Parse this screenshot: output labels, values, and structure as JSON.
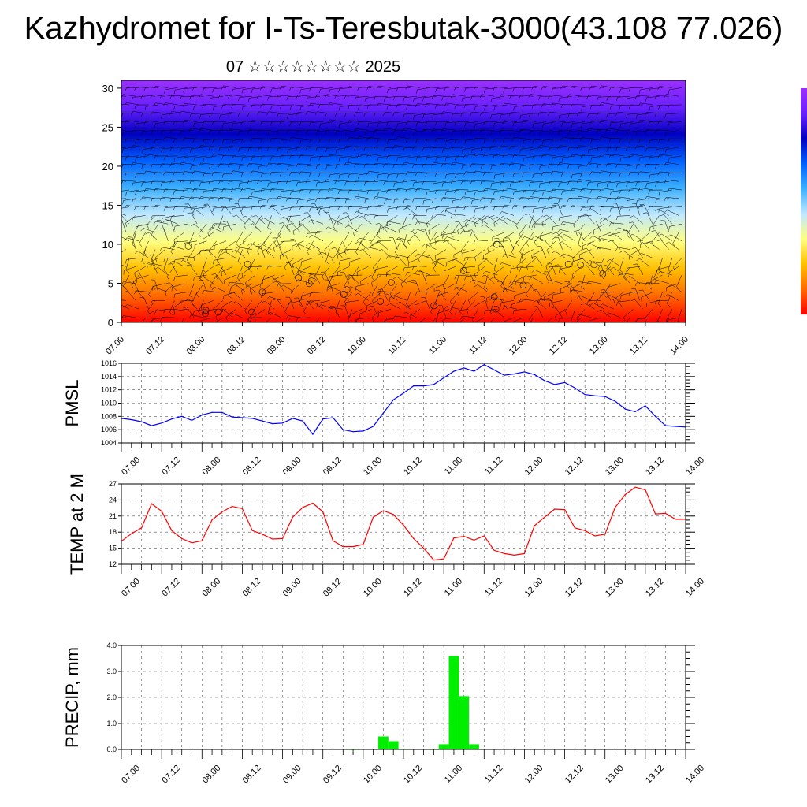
{
  "header": {
    "title": "Kazhydromet for I-Ts-Teresbutak-3000(43.108 77.026)",
    "subtitle": "07 ☆☆☆☆☆☆☆☆ 2025"
  },
  "chart_data": [
    {
      "type": "heatmap",
      "name": "vertical-section",
      "x_ticks": [
        "07.00",
        "07.12",
        "08.00",
        "08.12",
        "09.00",
        "09.12",
        "10.00",
        "10.12",
        "11.00",
        "11.12",
        "12.00",
        "12.12",
        "13.00",
        "13.12",
        "14.00"
      ],
      "y_ticks": [
        0,
        5,
        10,
        15,
        20,
        25,
        30
      ],
      "ylim": [
        0,
        31
      ],
      "colormap": [
        "#ff0000",
        "#ff6a00",
        "#ffc000",
        "#ffff80",
        "#c0e8ff",
        "#3cb0ff",
        "#0060ff",
        "#0000c0",
        "#6a20ff",
        "#9a30ff"
      ],
      "overlay": "wind barbs"
    },
    {
      "type": "line",
      "name": "pmsl",
      "ylabel": "PMSL",
      "ylim": [
        1004,
        1016
      ],
      "y_ticks": [
        1004,
        1006,
        1008,
        1010,
        1012,
        1014,
        1016
      ],
      "x_ticks": [
        "07.00",
        "07.12",
        "08.00",
        "08.12",
        "09.00",
        "09.12",
        "10.00",
        "10.12",
        "11.00",
        "11.12",
        "12.00",
        "12.12",
        "13.00",
        "13.12",
        "14.00"
      ],
      "color": "#0000ff",
      "x": [
        0,
        3,
        6,
        9,
        12,
        15,
        18,
        21,
        24,
        27,
        30,
        33,
        36,
        39,
        42,
        45,
        48,
        51,
        54,
        57,
        60,
        63,
        66,
        69,
        72,
        75,
        78,
        81,
        84,
        87,
        90,
        93,
        96,
        99,
        102,
        105,
        108,
        111,
        114,
        117,
        120,
        123,
        126,
        129,
        132,
        135,
        138,
        141,
        144,
        147,
        150,
        153,
        156,
        159,
        162,
        165,
        168
      ],
      "values": [
        1007.7,
        1007.5,
        1007.2,
        1006.6,
        1007.0,
        1007.6,
        1008.0,
        1007.4,
        1008.2,
        1008.6,
        1008.6,
        1007.9,
        1007.8,
        1007.7,
        1007.3,
        1006.9,
        1007.0,
        1007.7,
        1007.3,
        1005.3,
        1007.6,
        1007.8,
        1006.0,
        1005.7,
        1005.8,
        1006.5,
        1008.5,
        1010.5,
        1011.5,
        1012.6,
        1012.6,
        1012.8,
        1013.8,
        1014.8,
        1015.3,
        1014.8,
        1015.8,
        1015.0,
        1014.2,
        1014.4,
        1014.7,
        1014.3,
        1013.4,
        1012.8,
        1013.1,
        1012.3,
        1011.3,
        1011.1,
        1011.0,
        1010.3,
        1009.1,
        1008.7,
        1009.6,
        1008.0,
        1006.6,
        1006.5,
        1006.4
      ]
    },
    {
      "type": "line",
      "name": "temp-2m",
      "ylabel": "TEMP at 2 M",
      "ylim": [
        12,
        27
      ],
      "y_ticks": [
        12,
        15,
        18,
        21,
        24,
        27
      ],
      "x_ticks": [
        "07.00",
        "07.12",
        "08.00",
        "08.12",
        "09.00",
        "09.12",
        "10.00",
        "10.12",
        "11.00",
        "11.12",
        "12.00",
        "12.12",
        "13.00",
        "13.12",
        "14.00"
      ],
      "color": "#ff0000",
      "x": [
        0,
        3,
        6,
        9,
        12,
        15,
        18,
        21,
        24,
        27,
        30,
        33,
        36,
        39,
        42,
        45,
        48,
        51,
        54,
        57,
        60,
        63,
        66,
        69,
        72,
        75,
        78,
        81,
        84,
        87,
        90,
        93,
        96,
        99,
        102,
        105,
        108,
        111,
        114,
        117,
        120,
        123,
        126,
        129,
        132,
        135,
        138,
        141,
        144,
        147,
        150,
        153,
        156,
        159,
        162,
        165,
        168
      ],
      "values": [
        16.3,
        17.7,
        18.8,
        23.3,
        21.9,
        18.3,
        16.8,
        16.0,
        16.4,
        20.3,
        21.8,
        22.8,
        22.4,
        18.3,
        17.6,
        16.7,
        16.8,
        20.8,
        22.6,
        23.4,
        21.8,
        16.4,
        15.3,
        15.3,
        15.7,
        20.8,
        22.0,
        21.3,
        19.3,
        16.8,
        15.0,
        12.8,
        13.0,
        16.9,
        17.2,
        16.5,
        17.3,
        14.6,
        14.0,
        13.7,
        14.0,
        19.2,
        20.8,
        22.3,
        22.2,
        18.8,
        18.3,
        17.3,
        17.6,
        22.6,
        25.0,
        26.4,
        25.9,
        21.4,
        21.5,
        20.4,
        20.4
      ]
    },
    {
      "type": "bar",
      "name": "precip",
      "ylabel": "PRECIP, mm",
      "ylim": [
        0,
        4.0
      ],
      "y_ticks": [
        "0.0",
        "1.0",
        "2.0",
        "3.0",
        "4.0"
      ],
      "x_ticks": [
        "07.00",
        "07.12",
        "08.00",
        "08.12",
        "09.00",
        "09.12",
        "10.00",
        "10.12",
        "11.00",
        "11.12",
        "12.00",
        "12.12",
        "13.00",
        "13.12",
        "14.00"
      ],
      "color": "#00ee00",
      "x": [
        54,
        57,
        60,
        63,
        66,
        69,
        78,
        81,
        84,
        87,
        93,
        96,
        99,
        102,
        105
      ],
      "values": [
        0.01,
        0.01,
        0.01,
        0.01,
        0.01,
        0.02,
        0.5,
        0.32,
        0.02,
        0.01,
        0.02,
        0.2,
        3.6,
        2.05,
        0.2
      ]
    }
  ]
}
